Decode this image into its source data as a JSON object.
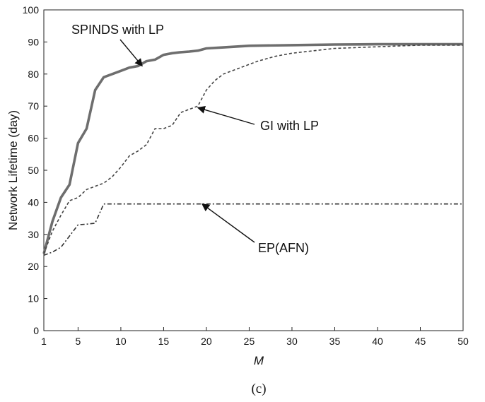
{
  "chart_data": {
    "type": "line",
    "xlabel": "M",
    "ylabel": "Network Lifetime (day)",
    "caption": "(c)",
    "xlim": [
      1,
      50
    ],
    "ylim": [
      0,
      100
    ],
    "x_ticks": [
      1,
      5,
      10,
      15,
      20,
      25,
      30,
      35,
      40,
      45,
      50
    ],
    "y_ticks": [
      0,
      10,
      20,
      30,
      40,
      50,
      60,
      70,
      80,
      90,
      100
    ],
    "grid": false,
    "series": [
      {
        "name": "SPINDS with LP",
        "color": "#6e6e6e",
        "style": "solid",
        "points": [
          [
            1,
            24
          ],
          [
            2,
            34
          ],
          [
            3,
            41.5
          ],
          [
            4,
            45.5
          ],
          [
            5,
            58.5
          ],
          [
            6,
            63
          ],
          [
            7,
            75
          ],
          [
            8,
            79
          ],
          [
            9,
            80
          ],
          [
            10,
            81
          ],
          [
            11,
            82
          ],
          [
            12,
            82.5
          ],
          [
            13,
            84
          ],
          [
            14,
            84.5
          ],
          [
            15,
            86
          ],
          [
            16,
            86.5
          ],
          [
            17,
            86.8
          ],
          [
            18,
            87
          ],
          [
            19,
            87.3
          ],
          [
            20,
            88
          ],
          [
            22,
            88.3
          ],
          [
            25,
            88.8
          ],
          [
            30,
            89
          ],
          [
            35,
            89.2
          ],
          [
            40,
            89.3
          ],
          [
            45,
            89.3
          ],
          [
            50,
            89.3
          ]
        ]
      },
      {
        "name": "GI with LP",
        "color": "#444444",
        "style": "dashed",
        "points": [
          [
            1,
            24
          ],
          [
            2,
            31
          ],
          [
            3,
            36
          ],
          [
            4,
            40.5
          ],
          [
            5,
            41.5
          ],
          [
            6,
            44
          ],
          [
            7,
            45
          ],
          [
            8,
            46
          ],
          [
            9,
            48
          ],
          [
            10,
            51
          ],
          [
            11,
            54.5
          ],
          [
            12,
            56
          ],
          [
            13,
            58
          ],
          [
            14,
            63
          ],
          [
            15,
            63
          ],
          [
            16,
            64
          ],
          [
            17,
            68
          ],
          [
            18,
            69
          ],
          [
            19,
            70
          ],
          [
            20,
            75
          ],
          [
            21,
            78
          ],
          [
            22,
            80
          ],
          [
            24,
            82
          ],
          [
            26,
            84
          ],
          [
            28,
            85.5
          ],
          [
            30,
            86.5
          ],
          [
            35,
            88
          ],
          [
            40,
            88.5
          ],
          [
            45,
            89
          ],
          [
            50,
            89
          ]
        ]
      },
      {
        "name": "EP(AFN)",
        "color": "#333333",
        "style": "dashdot",
        "points": [
          [
            1,
            23.5
          ],
          [
            2,
            24.5
          ],
          [
            3,
            26
          ],
          [
            4,
            29.5
          ],
          [
            5,
            33
          ],
          [
            6,
            33.2
          ],
          [
            7,
            33.5
          ],
          [
            8,
            39.5
          ],
          [
            10,
            39.5
          ],
          [
            20,
            39.5
          ],
          [
            30,
            39.5
          ],
          [
            40,
            39.5
          ],
          [
            50,
            39.5
          ]
        ]
      }
    ],
    "annotations": [
      {
        "text": "SPINDS with LP",
        "series": 0,
        "point_x": 12.5,
        "point_y": 82.5
      },
      {
        "text": "GI with LP",
        "series": 1,
        "point_x": 19,
        "point_y": 69.5
      },
      {
        "text": "EP(AFN)",
        "series": 2,
        "point_x": 19.5,
        "point_y": 39.5
      }
    ]
  }
}
